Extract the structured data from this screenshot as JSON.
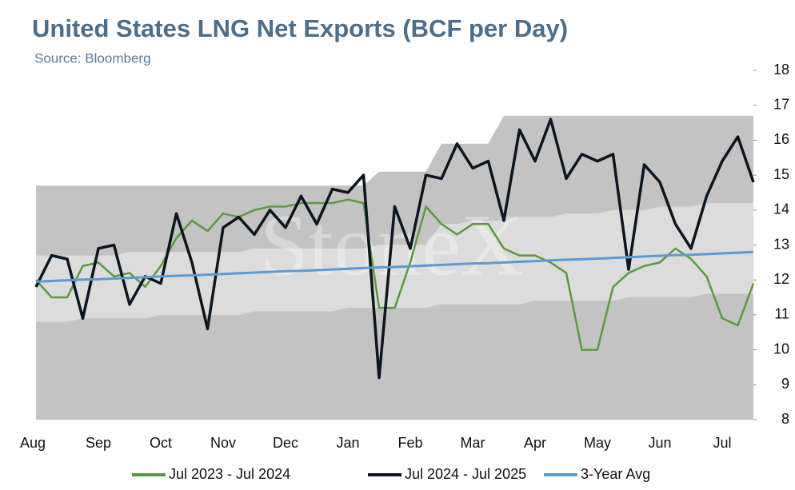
{
  "chart_data": {
    "type": "line",
    "title": "United States LNG Net Exports (BCF per Day)",
    "subtitle": "Source: Bloomberg",
    "watermark": "StoneX",
    "categories": [
      "Aug",
      null,
      null,
      null,
      "Sep",
      null,
      null,
      null,
      "Oct",
      null,
      null,
      null,
      "Nov",
      null,
      null,
      null,
      "Dec",
      null,
      null,
      null,
      "Jan",
      null,
      null,
      null,
      "Feb",
      null,
      null,
      null,
      "Mar",
      null,
      null,
      null,
      "Apr",
      null,
      null,
      null,
      "May",
      null,
      null,
      null,
      "Jun",
      null,
      null,
      null,
      "Jul",
      null,
      null
    ],
    "ylim": [
      8,
      18
    ],
    "yticks": [
      8,
      9,
      10,
      11,
      12,
      13,
      14,
      15,
      16,
      17,
      18
    ],
    "y_axis_side": "right",
    "legend": "bottom",
    "bands": [
      {
        "color": "#c4c3c3",
        "lower": [
          8,
          8,
          8,
          8,
          8,
          8,
          8,
          8,
          8,
          8,
          8,
          8,
          8,
          8,
          8,
          8,
          8,
          8,
          8,
          8,
          8,
          8,
          8,
          8,
          8,
          8,
          8,
          8,
          8,
          8,
          8,
          8,
          8,
          8,
          8,
          8,
          8,
          8,
          8,
          8,
          8,
          8,
          8,
          8,
          8,
          8,
          8
        ],
        "upper": [
          14.7,
          14.7,
          14.7,
          14.7,
          14.7,
          14.7,
          14.7,
          14.7,
          14.7,
          14.7,
          14.7,
          14.7,
          14.7,
          14.7,
          14.7,
          14.7,
          14.7,
          14.7,
          14.7,
          14.7,
          14.7,
          14.7,
          15.1,
          15.1,
          15.1,
          15.1,
          15.9,
          15.9,
          15.9,
          15.9,
          16.7,
          16.7,
          16.7,
          16.7,
          16.7,
          16.7,
          16.7,
          16.7,
          16.7,
          16.7,
          16.7,
          16.7,
          16.7,
          16.7,
          16.7,
          16.7,
          16.7
        ]
      },
      {
        "color": "#dcdcdc",
        "lower": [
          10.8,
          10.8,
          10.8,
          10.9,
          10.9,
          10.9,
          10.9,
          10.9,
          11.0,
          11.0,
          11.0,
          11.0,
          11.0,
          11.0,
          11.1,
          11.1,
          11.1,
          11.1,
          11.1,
          11.1,
          11.2,
          11.2,
          11.2,
          11.2,
          11.2,
          11.2,
          11.3,
          11.3,
          11.3,
          11.3,
          11.3,
          11.3,
          11.4,
          11.4,
          11.4,
          11.4,
          11.4,
          11.4,
          11.5,
          11.5,
          11.5,
          11.5,
          11.5,
          11.6,
          11.6,
          11.6,
          11.6
        ],
        "upper": [
          12.7,
          12.7,
          12.7,
          12.7,
          12.7,
          12.7,
          12.8,
          12.8,
          12.8,
          12.8,
          12.8,
          12.8,
          12.8,
          12.8,
          12.9,
          12.9,
          12.9,
          12.9,
          12.9,
          12.9,
          12.9,
          12.9,
          13.0,
          13.0,
          13.0,
          13.0,
          13.6,
          13.6,
          13.7,
          13.7,
          13.7,
          13.8,
          13.8,
          13.8,
          13.9,
          13.9,
          13.9,
          14.0,
          14.0,
          14.0,
          14.1,
          14.1,
          14.1,
          14.2,
          14.2,
          14.2,
          14.2
        ]
      }
    ],
    "series": [
      {
        "name": "Jul 2023 - Jul 2024",
        "color": "#5a9a3c",
        "width": 2.5,
        "values": [
          12.0,
          11.5,
          11.5,
          12.4,
          12.5,
          12.1,
          12.2,
          11.8,
          12.4,
          13.2,
          13.7,
          13.4,
          13.9,
          13.8,
          14.0,
          14.1,
          14.1,
          14.2,
          14.2,
          14.2,
          14.3,
          14.2,
          11.2,
          11.2,
          12.5,
          14.1,
          13.6,
          13.3,
          13.6,
          13.6,
          12.9,
          12.7,
          12.7,
          12.5,
          12.2,
          10.0,
          10.0,
          11.8,
          12.2,
          12.4,
          12.5,
          12.9,
          12.6,
          12.1,
          10.9,
          10.7,
          11.9
        ]
      },
      {
        "name": "Jul 2024 - Jul 2025",
        "color": "#0d1520",
        "width": 3.5,
        "values": [
          11.8,
          12.7,
          12.6,
          10.9,
          12.9,
          13.0,
          11.3,
          12.1,
          11.9,
          13.9,
          12.5,
          10.6,
          13.5,
          13.8,
          13.3,
          14.0,
          13.5,
          14.4,
          13.6,
          14.6,
          14.5,
          15.0,
          9.2,
          14.1,
          12.9,
          15.0,
          14.9,
          15.9,
          15.2,
          15.4,
          13.7,
          16.3,
          15.4,
          16.6,
          14.9,
          15.6,
          15.4,
          15.6,
          12.3,
          15.3,
          14.8,
          13.6,
          12.9,
          14.4,
          15.4,
          16.1,
          14.8
        ]
      },
      {
        "name": "3-Year Avg",
        "color": "#5b9bd5",
        "width": 3,
        "values": [
          11.95,
          11.97,
          11.99,
          12.01,
          12.02,
          12.04,
          12.06,
          12.08,
          12.1,
          12.12,
          12.13,
          12.15,
          12.17,
          12.19,
          12.21,
          12.23,
          12.25,
          12.26,
          12.28,
          12.3,
          12.32,
          12.34,
          12.36,
          12.37,
          12.39,
          12.41,
          12.43,
          12.45,
          12.47,
          12.48,
          12.5,
          12.52,
          12.54,
          12.56,
          12.58,
          12.59,
          12.61,
          12.63,
          12.65,
          12.67,
          12.69,
          12.71,
          12.72,
          12.74,
          12.76,
          12.78,
          12.8
        ]
      }
    ]
  }
}
